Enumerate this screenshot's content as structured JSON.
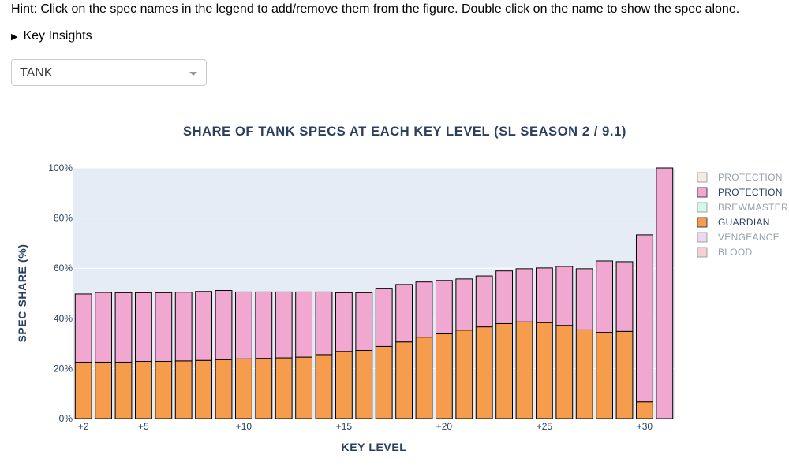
{
  "hint": "Hint: Click on the spec names in the legend to add/remove them from the figure. Double click on the name to show the spec alone.",
  "insights_label": "Key Insights",
  "dropdown": {
    "selected": "TANK"
  },
  "chart_data": {
    "type": "bar",
    "barmode": "stack",
    "title": "SHARE OF TANK SPECS AT EACH KEY LEVEL (SL SEASON 2 / 9.1)",
    "xlabel": "KEY LEVEL",
    "ylabel": "SPEC SHARE (%)",
    "ylim": [
      0,
      100
    ],
    "yticks": [
      "0%",
      "20%",
      "40%",
      "60%",
      "80%",
      "100%"
    ],
    "xtick_labels": [
      {
        "value": 2,
        "label": "+2"
      },
      {
        "value": 5,
        "label": "+5"
      },
      {
        "value": 10,
        "label": "+10"
      },
      {
        "value": 15,
        "label": "+15"
      },
      {
        "value": 20,
        "label": "+20"
      },
      {
        "value": 25,
        "label": "+25"
      },
      {
        "value": 30,
        "label": "+30"
      }
    ],
    "x": [
      2,
      3,
      4,
      5,
      6,
      7,
      8,
      9,
      10,
      11,
      12,
      13,
      14,
      15,
      16,
      17,
      18,
      19,
      20,
      21,
      22,
      23,
      24,
      25,
      26,
      27,
      28,
      29,
      30,
      31
    ],
    "legend_position": "right",
    "legend": [
      {
        "name": "PROTECTION",
        "color": "#efd9c4",
        "visible": false
      },
      {
        "name": "PROTECTION",
        "color": "#f0a8d0",
        "visible": true
      },
      {
        "name": "BREWMASTER",
        "color": "#a8f5d2",
        "visible": false
      },
      {
        "name": "GUARDIAN",
        "color": "#f59d4c",
        "visible": true
      },
      {
        "name": "VENGEANCE",
        "color": "#ddb0e8",
        "visible": false
      },
      {
        "name": "BLOOD",
        "color": "#eba1a8",
        "visible": false
      }
    ],
    "series": [
      {
        "name": "GUARDIAN",
        "color": "#f59d4c",
        "values": [
          22.5,
          22.5,
          22.5,
          22.8,
          22.8,
          23.0,
          23.2,
          23.5,
          23.8,
          24.0,
          24.2,
          24.5,
          25.5,
          26.8,
          27.2,
          28.8,
          30.6,
          32.5,
          33.8,
          35.3,
          36.6,
          37.9,
          38.6,
          38.3,
          37.2,
          35.4,
          34.4,
          34.8,
          6.7,
          0
        ]
      },
      {
        "name": "PROTECTION",
        "color": "#f0a8d0",
        "values": [
          27.2,
          27.8,
          27.7,
          27.4,
          27.4,
          27.4,
          27.5,
          27.6,
          26.7,
          26.5,
          26.3,
          26.0,
          25.0,
          23.4,
          23.0,
          23.2,
          22.9,
          22.0,
          21.3,
          20.4,
          20.3,
          21.0,
          21.2,
          21.8,
          23.5,
          24.4,
          28.5,
          27.8,
          66.6,
          100
        ]
      }
    ]
  }
}
